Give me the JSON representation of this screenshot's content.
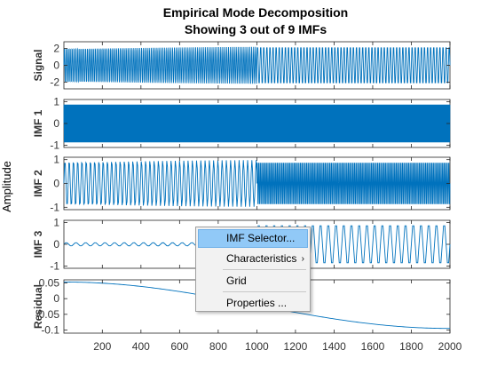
{
  "chart_data": {
    "type": "line",
    "title": "Empirical Mode Decomposition",
    "subtitle": "Showing 3 out of 9 IMFs",
    "ylabel": "Amplitude",
    "xlim": [
      1,
      2000
    ],
    "xticks": [
      200,
      400,
      600,
      800,
      1000,
      1200,
      1400,
      1600,
      1800,
      2000
    ],
    "series_color": "#0072BD",
    "panels": [
      {
        "name": "Signal",
        "ylim": [
          -2.8,
          2.8
        ],
        "yticks": [
          2,
          0,
          -2
        ],
        "segments": [
          {
            "x_from": 1,
            "x_to": 1000,
            "period": 10,
            "amplitude": 2.2
          },
          {
            "x_from": 1000,
            "x_to": 2000,
            "period": 16,
            "amplitude": 2.4
          }
        ]
      },
      {
        "name": "IMF 1",
        "ylim": [
          -1.1,
          1.1
        ],
        "yticks": [
          1,
          0,
          -1
        ],
        "segments": [
          {
            "x_from": 1,
            "x_to": 1000,
            "period": 3,
            "amplitude": 0.98
          },
          {
            "x_from": 1000,
            "x_to": 2000,
            "period": 3,
            "amplitude": 0.98
          }
        ]
      },
      {
        "name": "IMF 2",
        "ylim": [
          -1.1,
          1.1
        ],
        "yticks": [
          1,
          0,
          -1
        ],
        "segments": [
          {
            "x_from": 1,
            "x_to": 1000,
            "period": 22,
            "amplitude": 0.98
          },
          {
            "x_from": 1000,
            "x_to": 2000,
            "period": 8,
            "amplitude": 0.98
          }
        ]
      },
      {
        "name": "IMF 3",
        "ylim": [
          -1.1,
          1.1
        ],
        "yticks": [
          1,
          0,
          -1
        ],
        "segments": [
          {
            "x_from": 1,
            "x_to": 1000,
            "period": 50,
            "amplitude": 0.08
          },
          {
            "x_from": 1000,
            "x_to": 2000,
            "period": 40,
            "amplitude": 0.98
          }
        ]
      },
      {
        "name": "Residual",
        "ylim": [
          -0.11,
          0.06
        ],
        "yticks": [
          0.05,
          0,
          -0.05,
          -0.1
        ],
        "curve": {
          "type": "cosine",
          "y_start": 0.053,
          "y_end": -0.095,
          "x_from": 1,
          "x_to": 2000
        }
      }
    ]
  },
  "context_menu": {
    "items": [
      {
        "label": "IMF Selector...",
        "highlighted": true
      },
      {
        "label": "Characteristics",
        "submenu": true
      },
      {
        "label": "Grid"
      },
      {
        "label": "Properties ..."
      }
    ]
  }
}
